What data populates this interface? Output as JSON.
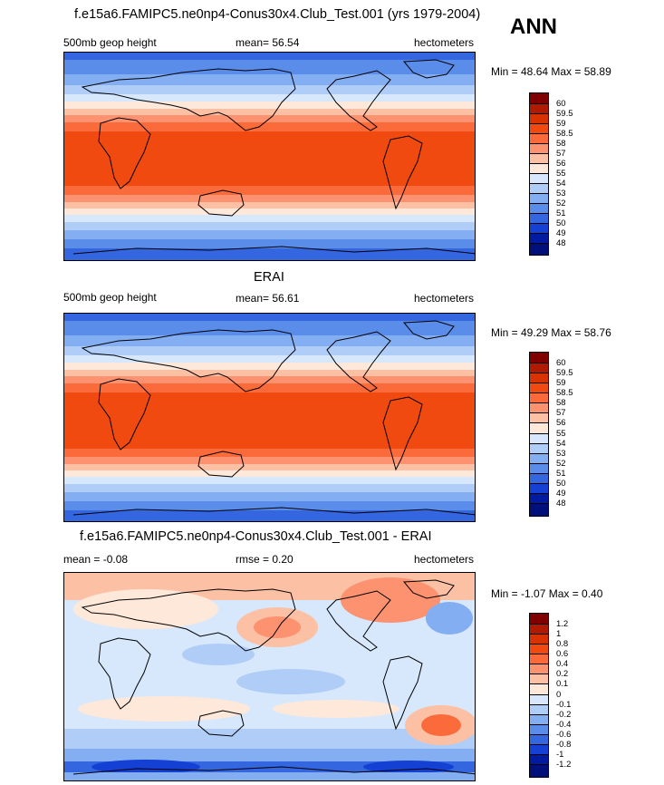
{
  "chart_data": [
    {
      "type": "heatmap",
      "title": "f.e15a6.FAMIPC5.ne0np4-Conus30x4.Club_Test.001 (yrs 1979-2004)",
      "season": "ANN",
      "variable": "500mb geop height",
      "mean_text": "mean=  56.54",
      "units": "hectometers",
      "minmax_text": "Min = 48.64 Max = 58.89",
      "min": 48.64,
      "max": 58.89,
      "levels": [
        "60",
        "59.5",
        "59",
        "58.5",
        "58",
        "57",
        "56",
        "55",
        "54",
        "53",
        "52",
        "51",
        "50",
        "49",
        "48"
      ],
      "colors": [
        "#800000",
        "#b01a00",
        "#d83200",
        "#f04a10",
        "#fa6a3a",
        "#fc9270",
        "#fcc0a4",
        "#fde8da",
        "#d8e8fc",
        "#b0cdf8",
        "#84aef2",
        "#5a8cea",
        "#3466e0",
        "#1440d4",
        "#001aa0",
        "#00107a"
      ]
    },
    {
      "type": "heatmap",
      "title": "ERAI",
      "variable": "500mb geop height",
      "mean_text": "mean=  56.61",
      "units": "hectometers",
      "minmax_text": "Min = 49.29 Max = 58.76",
      "min": 49.29,
      "max": 58.76,
      "levels": [
        "60",
        "59.5",
        "59",
        "58.5",
        "58",
        "57",
        "56",
        "55",
        "54",
        "53",
        "52",
        "51",
        "50",
        "49",
        "48"
      ],
      "colors": [
        "#800000",
        "#b01a00",
        "#d83200",
        "#f04a10",
        "#fa6a3a",
        "#fc9270",
        "#fcc0a4",
        "#fde8da",
        "#d8e8fc",
        "#b0cdf8",
        "#84aef2",
        "#5a8cea",
        "#3466e0",
        "#1440d4",
        "#001aa0",
        "#00107a"
      ]
    },
    {
      "type": "heatmap",
      "title": "f.e15a6.FAMIPC5.ne0np4-Conus30x4.Club_Test.001 - ERAI",
      "mean_text": "mean =  -0.08",
      "rmse_text": "rmse =   0.20",
      "units": "hectometers",
      "minmax_text": "Min =  -1.07 Max =   0.40",
      "min": -1.07,
      "max": 0.4,
      "levels": [
        "1.2",
        "1",
        "0.8",
        "0.6",
        "0.4",
        "0.2",
        "0.1",
        "0",
        "-0.1",
        "-0.2",
        "-0.4",
        "-0.6",
        "-0.8",
        "-1",
        "-1.2"
      ],
      "colors": [
        "#800000",
        "#b01a00",
        "#d83200",
        "#f04a10",
        "#fa6a3a",
        "#fc9270",
        "#fcc0a4",
        "#fde8da",
        "#d8e8fc",
        "#b0cdf8",
        "#84aef2",
        "#5a8cea",
        "#3466e0",
        "#1440d4",
        "#001aa0",
        "#00107a"
      ]
    }
  ]
}
